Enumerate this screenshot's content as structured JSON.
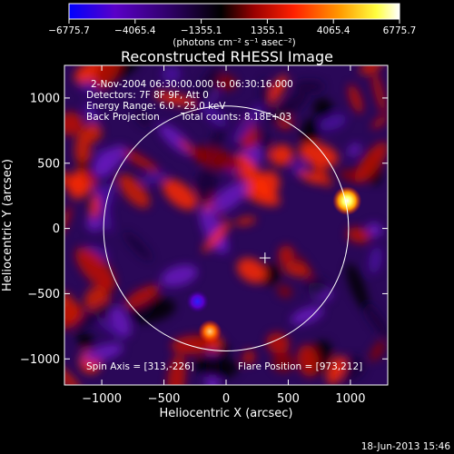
{
  "chart_data": {
    "type": "heatmap",
    "title": "Reconstructed RHESSI Image",
    "xlabel": "Heliocentric X (arcsec)",
    "ylabel": "Heliocentric Y (arcsec)",
    "xlim": [
      -1300,
      1300
    ],
    "ylim": [
      -1200,
      1250
    ],
    "x_ticks": [
      -1000,
      -500,
      0,
      500,
      1000
    ],
    "y_ticks": [
      -1000,
      -500,
      0,
      500,
      1000
    ],
    "colorbar": {
      "min": -6775.7,
      "max": 6775.7,
      "tick_values": [
        -6775.7,
        -4065.4,
        -1355.1,
        1355.1,
        4065.4,
        6775.7
      ],
      "tick_labels": [
        "−6775.7",
        "−4065.4",
        "−1355.1",
        "1355.1",
        "4065.4",
        "6775.7"
      ],
      "unit_label": "(photons cm⁻² s⁻¹ asec⁻²)",
      "colors": [
        "#0000ff",
        "#5a00c8",
        "#30006a",
        "#000000",
        "#9a0000",
        "#ff2000",
        "#ff9a00",
        "#ffff40",
        "#ffffff"
      ]
    },
    "annotations": {
      "time_range": "2-Nov-2004 06:30:00.000 to 06:30:16.000",
      "detectors": "Detectors: 7F 8F 9F, Att 0",
      "energy_range": "Energy Range: 6.0 - 25.0 keV",
      "method": "Back Projection",
      "total_counts": "Total counts: 8.18E+03",
      "spin_axis": "Spin Axis = [313,-226]",
      "flare_position": "Flare Position = [973,212]"
    },
    "solar_limb": {
      "center": [
        0,
        0
      ],
      "radius": 985
    },
    "spin_axis_marker": [
      313,
      -226
    ],
    "bright_sources": [
      {
        "x": 973,
        "y": 212,
        "value": 6775.7
      },
      {
        "x": -130,
        "y": -790,
        "value": 4100
      }
    ],
    "dark_sources": [
      {
        "x": -230,
        "y": -560,
        "value": -6775.7
      }
    ]
  },
  "footer": {
    "date": "18-Jun-2013 15:46"
  }
}
